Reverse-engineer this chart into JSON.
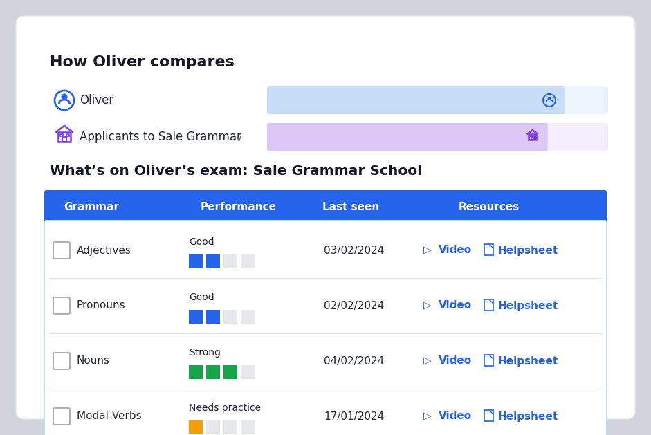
{
  "title_compare": "How Oliver compares",
  "title_exam": "What’s on Oliver’s exam: Sale Grammar School",
  "oliver_label": "Oliver",
  "applicants_label": "Applicants to Sale Grammar",
  "oliver_bar_bg": "#eef4fd",
  "oliver_bar_fill_color": "#c8ddf8",
  "oliver_bar_fill": 0.87,
  "applicants_bar_bg": "#f5eefe",
  "applicants_bar_fill_color": "#ddc8f5",
  "applicants_bar_fill": 0.82,
  "table_header_bg": "#2563eb",
  "table_header_color": "#ffffff",
  "table_bg": "#ffffff",
  "table_border": "#bfdbfe",
  "col_headers": [
    "Grammar",
    "Performance",
    "Last seen",
    "Resources"
  ],
  "rows": [
    {
      "name": "Adjectives",
      "performance": "Good",
      "perf_filled": 2,
      "perf_total": 4,
      "perf_color": "#2563eb",
      "date": "03/02/2024"
    },
    {
      "name": "Pronouns",
      "performance": "Good",
      "perf_filled": 2,
      "perf_total": 4,
      "perf_color": "#2563eb",
      "date": "02/02/2024"
    },
    {
      "name": "Nouns",
      "performance": "Strong",
      "perf_filled": 3,
      "perf_total": 4,
      "perf_color": "#16a34a",
      "date": "04/02/2024"
    },
    {
      "name": "Modal Verbs",
      "performance": "Needs practice",
      "perf_filled": 1,
      "perf_total": 4,
      "perf_color": "#f59e0b",
      "date": "17/01/2024"
    }
  ],
  "link_color": "#2563eb",
  "card_bg": "#ffffff",
  "outer_bg": "#d1d5db",
  "icon_oliver_color": "#2563eb",
  "icon_applicants_color": "#7c3aed",
  "row_divider_color": "#dbeafe",
  "empty_sq_color": "#e5e7eb"
}
